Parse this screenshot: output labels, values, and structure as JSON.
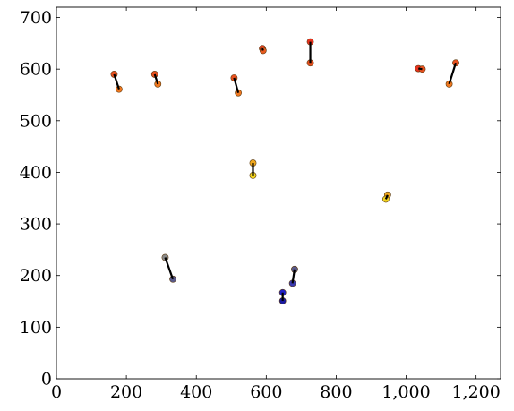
{
  "chart_data": {
    "type": "scatter",
    "title": "",
    "xlabel": "",
    "ylabel": "",
    "xlim": [
      0,
      1270
    ],
    "ylim": [
      0,
      720
    ],
    "grid": false,
    "x_ticks": [
      0,
      200,
      400,
      600,
      800,
      1000,
      1200
    ],
    "x_tick_labels": [
      "0",
      "200",
      "400",
      "600",
      "800",
      "1,000",
      "1,200"
    ],
    "y_ticks": [
      0,
      100,
      200,
      300,
      400,
      500,
      600,
      700
    ],
    "y_tick_labels": [
      "0",
      "100",
      "200",
      "300",
      "400",
      "500",
      "600",
      "700"
    ],
    "pairs": [
      {
        "x1": 165,
        "y1": 590,
        "x2": 179,
        "y2": 561,
        "color1": "#e8501e",
        "color2": "#f07820"
      },
      {
        "x1": 281,
        "y1": 590,
        "x2": 290,
        "y2": 571,
        "color1": "#e8501e",
        "color2": "#f07820"
      },
      {
        "x1": 508,
        "y1": 583,
        "x2": 520,
        "y2": 554,
        "color1": "#e8501e",
        "color2": "#f07820"
      },
      {
        "x1": 589,
        "y1": 640,
        "x2": 591,
        "y2": 636,
        "color1": "#e83a1e",
        "color2": "#e85a1e"
      },
      {
        "x1": 726,
        "y1": 653,
        "x2": 726,
        "y2": 612,
        "color1": "#e8321e",
        "color2": "#e8501e"
      },
      {
        "x1": 1035,
        "y1": 601,
        "x2": 1046,
        "y2": 600,
        "color1": "#e8321e",
        "color2": "#e8501e"
      },
      {
        "x1": 1142,
        "y1": 612,
        "x2": 1123,
        "y2": 571,
        "color1": "#e8501e",
        "color2": "#f07820"
      },
      {
        "x1": 562,
        "y1": 418,
        "x2": 562,
        "y2": 394,
        "color1": "#f0a81e",
        "color2": "#f0d21e"
      },
      {
        "x1": 947,
        "y1": 356,
        "x2": 942,
        "y2": 348,
        "color1": "#f0a81e",
        "color2": "#f0d21e"
      },
      {
        "x1": 311,
        "y1": 235,
        "x2": 333,
        "y2": 193,
        "color1": "#8a8a8a",
        "color2": "#5a5a8a"
      },
      {
        "x1": 681,
        "y1": 212,
        "x2": 675,
        "y2": 185,
        "color1": "#5a5a8a",
        "color2": "#3a3ab0"
      },
      {
        "x1": 647,
        "y1": 167,
        "x2": 647,
        "y2": 151,
        "color1": "#2222c8",
        "color2": "#1a1aa0"
      }
    ]
  }
}
